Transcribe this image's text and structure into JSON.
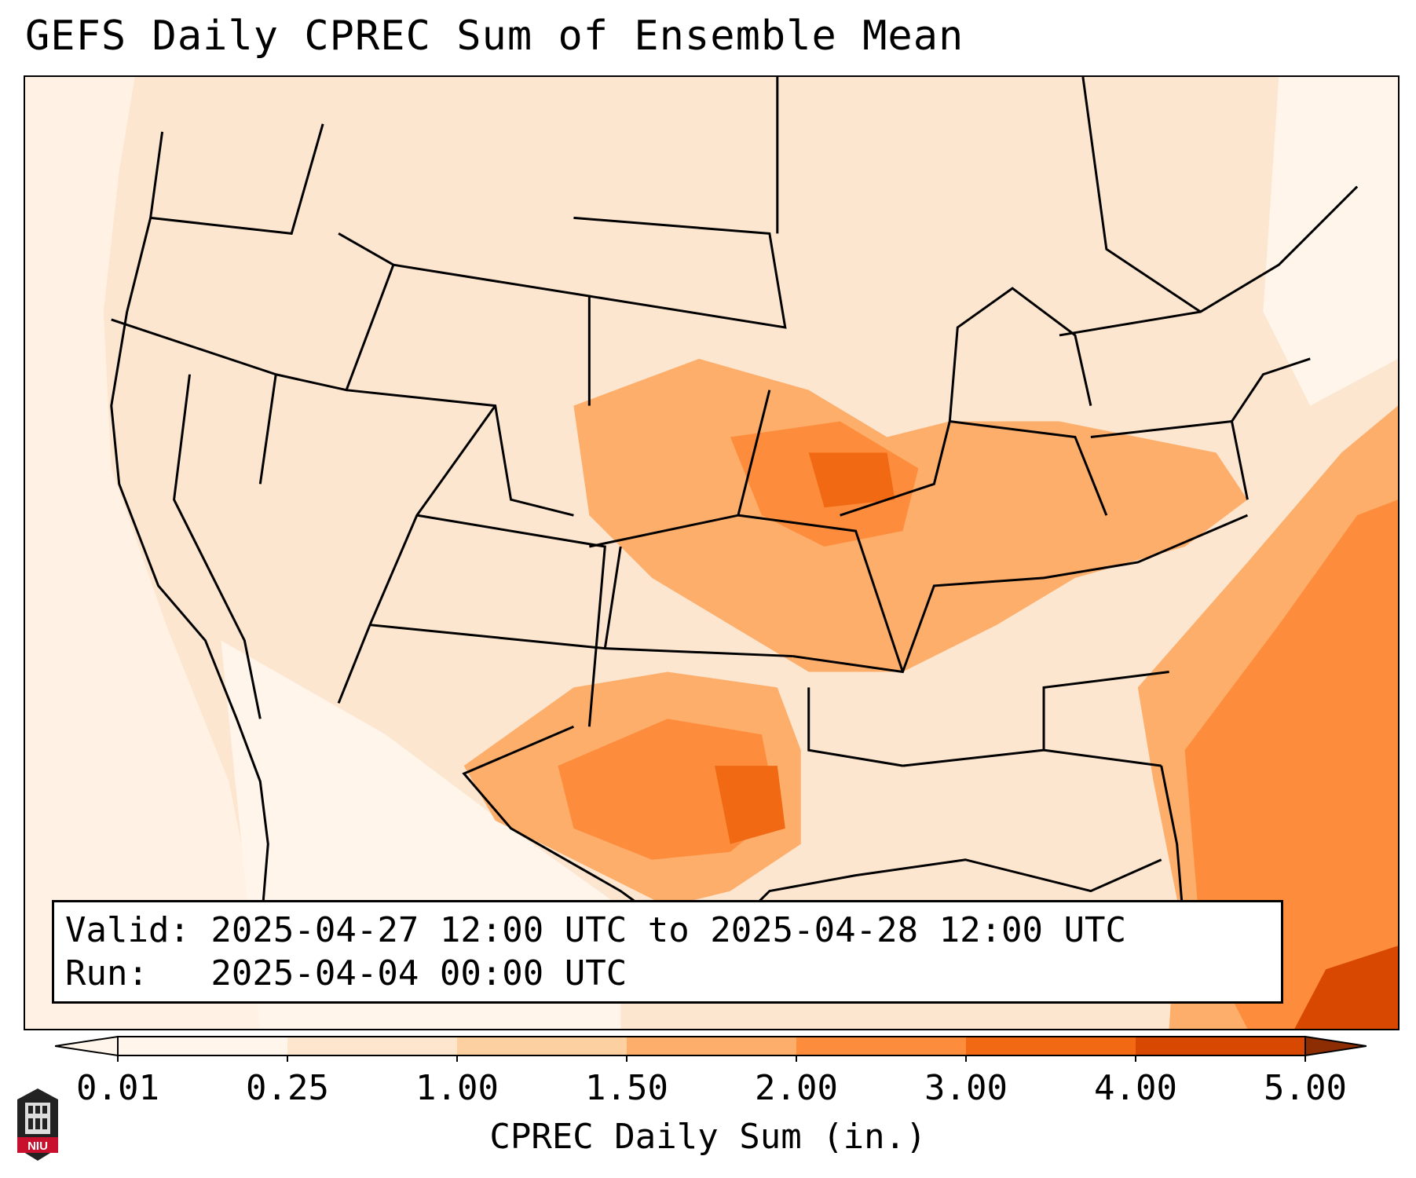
{
  "title": "GEFS Daily CPREC Sum of Ensemble Mean",
  "info": {
    "valid_line": "Valid: 2025-04-27 12:00 UTC to 2025-04-28 12:00 UTC",
    "run_line": "Run:   2025-04-04 00:00 UTC"
  },
  "colorbar": {
    "label": "CPREC Daily Sum (in.)",
    "ticks": [
      "0.01",
      "0.25",
      "1.00",
      "1.50",
      "2.00",
      "3.00",
      "4.00",
      "5.00"
    ],
    "colors": [
      "#fff5eb",
      "#fee6ce",
      "#fdd0a2",
      "#fdae6b",
      "#fd8d3c",
      "#f16913",
      "#d94801",
      "#8c2d04"
    ]
  },
  "logo": {
    "text": "NIU",
    "color": "#c8102e"
  }
}
